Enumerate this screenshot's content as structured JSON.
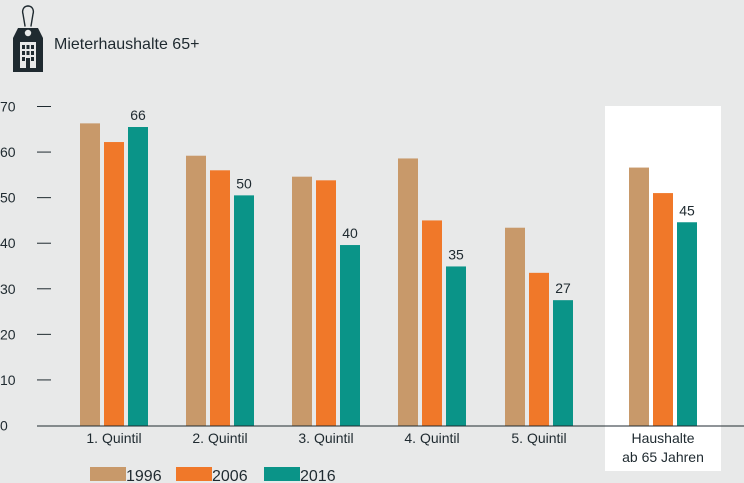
{
  "title": "Mieterhaushalte 65+",
  "icon": "building-tag-icon",
  "colors": {
    "1996": "#c8996a",
    "2006": "#f07829",
    "2016": "#0a9488",
    "axis": "#1f2a30",
    "highlight": "#ffffff"
  },
  "chart_data": {
    "type": "bar",
    "categories": [
      "1. Quintil",
      "2. Quintil",
      "3. Quintil",
      "4. Quintil",
      "5. Quintil",
      "Haushalte\nab 65 Jahren"
    ],
    "highlight_category": "Haushalte\nab 65 Jahren",
    "series": [
      {
        "name": "1996",
        "values": [
          66.3,
          59.2,
          54.6,
          58.6,
          43.4,
          56.6
        ],
        "color": "#c8996a"
      },
      {
        "name": "2006",
        "values": [
          62.2,
          56.0,
          53.8,
          45.0,
          33.5,
          51.0
        ],
        "color": "#f07829"
      },
      {
        "name": "2016",
        "values": [
          65.5,
          50.5,
          39.6,
          34.9,
          27.5,
          44.6
        ],
        "color": "#0a9488"
      }
    ],
    "data_labels": [
      "66",
      "50",
      "40",
      "35",
      "27",
      "45"
    ],
    "ylim": [
      0,
      70
    ],
    "yticks": [
      "0",
      "10",
      "20",
      "30",
      "40",
      "50",
      "60",
      "70"
    ],
    "xlabel": "",
    "ylabel": "",
    "legend": [
      "1996",
      "2006",
      "2016"
    ],
    "legend_position": "bottom-left",
    "grid": false
  }
}
